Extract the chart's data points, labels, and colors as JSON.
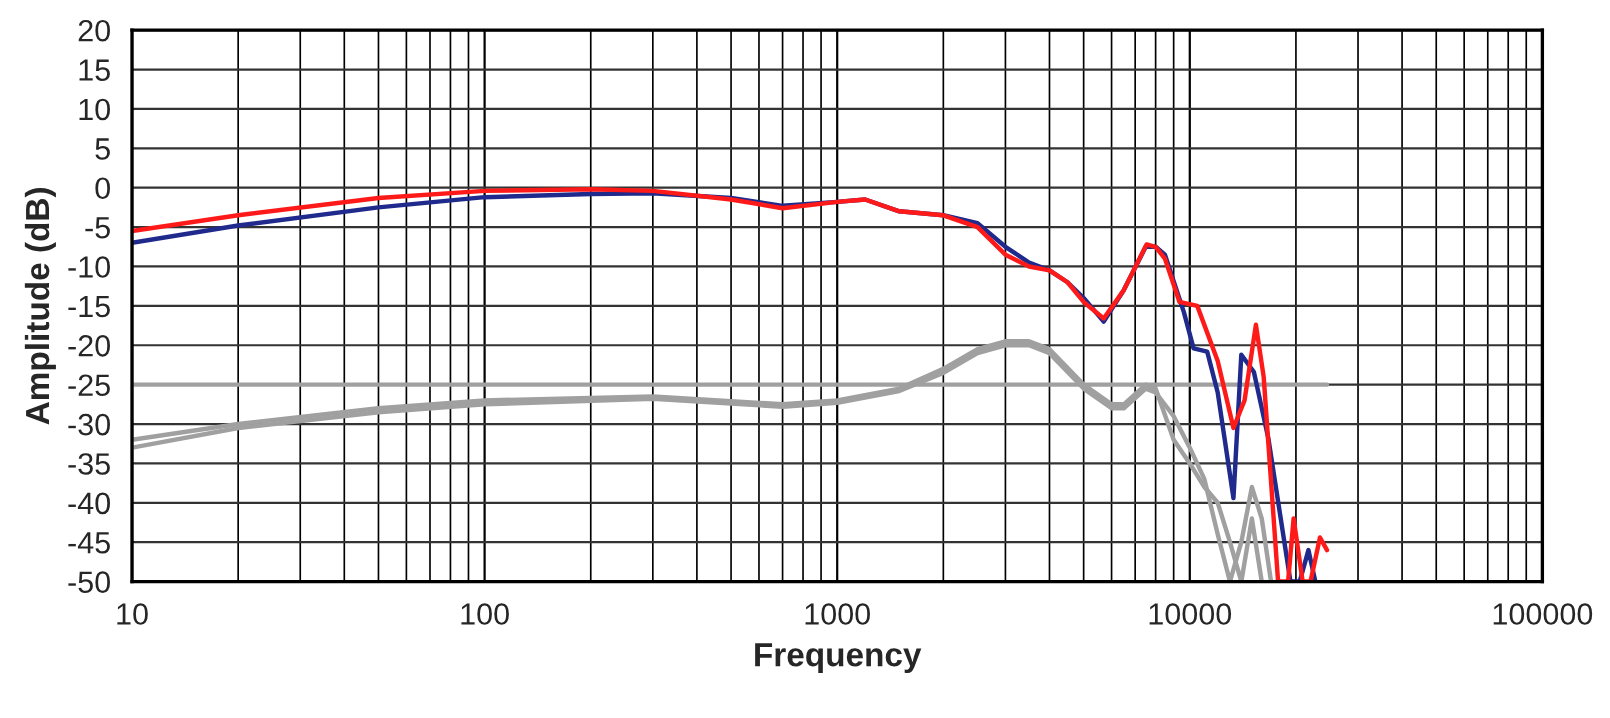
{
  "chart_data": {
    "type": "line",
    "xlabel": "Frequency",
    "ylabel": "Amplitude (dB)",
    "log": "x",
    "grid": true,
    "legend": false,
    "marker": "none",
    "line_style": "solid",
    "xlim": [
      10,
      100000
    ],
    "xticks": [
      10,
      100,
      1000,
      10000,
      100000
    ],
    "ylim": [
      -50,
      20
    ],
    "yticks": [
      -50,
      -45,
      -40,
      -35,
      -30,
      -25,
      -20,
      -15,
      -10,
      -5,
      0,
      5,
      10,
      15,
      20
    ],
    "series": [
      {
        "color": "#a0a0a0",
        "x": [
          10,
          24500
        ],
        "values": [
          -25,
          -25
        ]
      },
      {
        "color": "#a0a0a0",
        "x": [
          10,
          20,
          50,
          100,
          300,
          700,
          1000,
          1500,
          2000,
          2500,
          3000,
          3500,
          4000,
          5000,
          6000,
          6500,
          7500,
          8000,
          9000,
          10000,
          11000,
          12000,
          13000,
          14000,
          15000,
          16000
        ],
        "values": [
          -32,
          -30,
          -28,
          -27,
          -26.5,
          -27.5,
          -27,
          -25.5,
          -23,
          -20.5,
          -19.5,
          -19.5,
          -20.5,
          -25,
          -27.5,
          -27.5,
          -25,
          -25.5,
          -32,
          -35,
          -38,
          -40,
          -45,
          -50,
          -42,
          -50
        ]
      },
      {
        "color": "#a0a0a0",
        "x": [
          10,
          20,
          50,
          100,
          300,
          700,
          1000,
          1500,
          2000,
          2500,
          3000,
          3500,
          4000,
          5000,
          6000,
          6500,
          7500,
          8000,
          9000,
          10000,
          11000,
          12000,
          13000,
          14000,
          15000,
          16000,
          17000
        ],
        "values": [
          -33,
          -30.5,
          -28.5,
          -27.5,
          -26.8,
          -27.8,
          -27.3,
          -25.8,
          -23.5,
          -21,
          -20,
          -20,
          -21,
          -25.5,
          -28,
          -28,
          -25.5,
          -26,
          -29,
          -33,
          -37,
          -44,
          -50,
          -45,
          -38,
          -42,
          -50
        ]
      },
      {
        "color": "#1f2a8c",
        "x": [
          10,
          20,
          50,
          100,
          200,
          300,
          500,
          700,
          1000,
          1200,
          1500,
          2000,
          2500,
          3000,
          3500,
          4000,
          4500,
          5000,
          5700,
          6500,
          7500,
          8000,
          8500,
          9620,
          10250,
          11200,
          12000,
          13300,
          14000,
          15200,
          16700,
          19300,
          20500,
          21700,
          22700
        ],
        "values": [
          -7,
          -4.8,
          -2.5,
          -1.2,
          -0.8,
          -0.7,
          -1.3,
          -2.3,
          -1.8,
          -1.5,
          -3,
          -3.5,
          -4.5,
          -7.5,
          -9.5,
          -10.5,
          -12,
          -14,
          -17,
          -13,
          -7.5,
          -7.5,
          -8.5,
          -15.8,
          -20.4,
          -20.8,
          -26,
          -39.4,
          -21.2,
          -23.4,
          -31.8,
          -50,
          -50,
          -46,
          -50
        ]
      },
      {
        "color": "#ff1a1a",
        "x": [
          10,
          20,
          50,
          100,
          200,
          300,
          500,
          700,
          1000,
          1200,
          1500,
          2000,
          2500,
          3000,
          3500,
          4000,
          4500,
          5000,
          5700,
          6500,
          7540,
          8000,
          8500,
          9350,
          10500,
          12000,
          13300,
          14300,
          15400,
          16200,
          17800,
          19000,
          19700,
          20900,
          22000,
          23400,
          24500
        ],
        "values": [
          -5.5,
          -3.5,
          -1.3,
          -0.4,
          -0.2,
          -0.4,
          -1.5,
          -2.6,
          -1.8,
          -1.5,
          -3,
          -3.5,
          -5,
          -8.5,
          -10,
          -10.5,
          -12,
          -14.5,
          -16.6,
          -13,
          -7.2,
          -7.5,
          -9,
          -14.5,
          -15,
          -22,
          -30.5,
          -27,
          -17.4,
          -24,
          -50,
          -50,
          -42,
          -50,
          -50,
          -44.4,
          -46
        ]
      }
    ]
  }
}
